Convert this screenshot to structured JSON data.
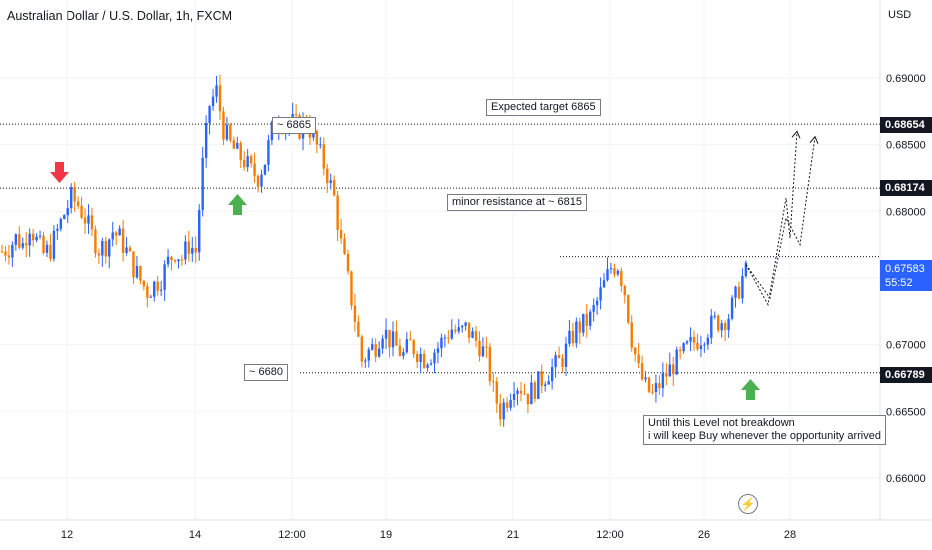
{
  "header": {
    "title": "Australian Dollar / U.S. Dollar, 1h, FXCM",
    "currency": "USD"
  },
  "colors": {
    "up": "#2962ff",
    "down": "#f57c00",
    "arrow_down": "#f23645",
    "arrow_up": "#4caf50",
    "badge_dark": "#131722",
    "badge_live": "#2962ff"
  },
  "price_badges": {
    "target": "0.68654",
    "resistance": "0.68174",
    "support": "0.66789",
    "live_price": "0.67583",
    "live_countdown": "55:52"
  },
  "annotations": {
    "target_note": "Expected target 6865",
    "resistance_note": "minor resistance at ~ 6815",
    "high_note": "~ 6865",
    "support_note": "~ 6680",
    "level_note_line1": "Until this Level not breakdown",
    "level_note_line2": "i will keep Buy whenever the opportunity arrived"
  },
  "lightning_icon": "lightning-icon",
  "chart_data": {
    "type": "candlestick",
    "title": "Australian Dollar / U.S. Dollar, 1h, FXCM",
    "y_axis": {
      "ticks": [
        "0.69000",
        "0.68500",
        "0.68000",
        "0.67500",
        "0.67000",
        "0.66500",
        "0.66000"
      ],
      "ylim": [
        0.6555,
        0.6925
      ]
    },
    "x_axis": {
      "ticks": [
        "12",
        "14",
        "12:00",
        "19",
        "21",
        "12:00",
        "26",
        "28"
      ]
    },
    "horizontal_levels": [
      0.68654,
      0.68174,
      0.66789
    ],
    "price_path": [
      [
        0,
        0.677
      ],
      [
        2,
        0.6773
      ],
      [
        4,
        0.678
      ],
      [
        6,
        0.6775
      ],
      [
        8,
        0.679
      ],
      [
        10,
        0.6778
      ],
      [
        12,
        0.6768
      ],
      [
        14,
        0.6772
      ],
      [
        16,
        0.6785
      ],
      [
        18,
        0.6798
      ],
      [
        20,
        0.681
      ],
      [
        22,
        0.6805
      ],
      [
        24,
        0.6795
      ],
      [
        26,
        0.6782
      ],
      [
        28,
        0.6772
      ],
      [
        30,
        0.6775
      ],
      [
        32,
        0.6785
      ],
      [
        34,
        0.678
      ],
      [
        36,
        0.677
      ],
      [
        38,
        0.6758
      ],
      [
        40,
        0.6748
      ],
      [
        42,
        0.674
      ],
      [
        44,
        0.6745
      ],
      [
        46,
        0.675
      ],
      [
        48,
        0.6762
      ],
      [
        50,
        0.677
      ],
      [
        52,
        0.6765
      ],
      [
        54,
        0.6775
      ],
      [
        56,
        0.677
      ],
      [
        58,
        0.6835
      ],
      [
        60,
        0.688
      ],
      [
        62,
        0.689
      ],
      [
        64,
        0.6862
      ],
      [
        66,
        0.685
      ],
      [
        68,
        0.6843
      ],
      [
        70,
        0.6838
      ],
      [
        72,
        0.683
      ],
      [
        74,
        0.6826
      ],
      [
        76,
        0.6838
      ],
      [
        78,
        0.686
      ],
      [
        80,
        0.6872
      ],
      [
        82,
        0.6865
      ],
      [
        84,
        0.6866
      ],
      [
        86,
        0.6862
      ],
      [
        88,
        0.6868
      ],
      [
        90,
        0.6855
      ],
      [
        92,
        0.6842
      ],
      [
        94,
        0.6828
      ],
      [
        96,
        0.681
      ],
      [
        98,
        0.6775
      ],
      [
        100,
        0.6748
      ],
      [
        102,
        0.672
      ],
      [
        104,
        0.6688
      ],
      [
        106,
        0.6695
      ],
      [
        108,
        0.67
      ],
      [
        110,
        0.6712
      ],
      [
        112,
        0.6704
      ],
      [
        114,
        0.6698
      ],
      [
        116,
        0.6692
      ],
      [
        118,
        0.67
      ],
      [
        120,
        0.6695
      ],
      [
        122,
        0.669
      ],
      [
        124,
        0.6693
      ],
      [
        126,
        0.6698
      ],
      [
        128,
        0.6706
      ],
      [
        130,
        0.6712
      ],
      [
        132,
        0.6708
      ],
      [
        134,
        0.6712
      ],
      [
        136,
        0.6706
      ],
      [
        138,
        0.67
      ],
      [
        140,
        0.669
      ],
      [
        142,
        0.6665
      ],
      [
        144,
        0.665
      ],
      [
        146,
        0.666
      ],
      [
        148,
        0.6672
      ],
      [
        150,
        0.6668
      ],
      [
        152,
        0.6662
      ],
      [
        154,
        0.6668
      ],
      [
        156,
        0.6674
      ],
      [
        158,
        0.668
      ],
      [
        160,
        0.6684
      ],
      [
        162,
        0.669
      ],
      [
        164,
        0.6702
      ],
      [
        166,
        0.6712
      ],
      [
        168,
        0.6715
      ],
      [
        170,
        0.672
      ],
      [
        172,
        0.6732
      ],
      [
        174,
        0.6745
      ],
      [
        176,
        0.6758
      ],
      [
        178,
        0.676
      ],
      [
        180,
        0.674
      ],
      [
        182,
        0.6705
      ],
      [
        184,
        0.668
      ],
      [
        186,
        0.6668
      ],
      [
        188,
        0.6662
      ],
      [
        190,
        0.667
      ],
      [
        192,
        0.6678
      ],
      [
        194,
        0.6685
      ],
      [
        196,
        0.669
      ],
      [
        198,
        0.6697
      ],
      [
        200,
        0.6702
      ],
      [
        202,
        0.6706
      ],
      [
        204,
        0.6712
      ],
      [
        206,
        0.6717
      ],
      [
        208,
        0.6718
      ],
      [
        210,
        0.6722
      ],
      [
        212,
        0.6735
      ],
      [
        214,
        0.675
      ],
      [
        216,
        0.6758
      ]
    ],
    "projection": [
      [
        0.676,
        0.673,
        0.681,
        0.678,
        0.686
      ],
      [
        0.676,
        0.6735,
        0.6795,
        0.6775,
        0.6856
      ]
    ]
  }
}
